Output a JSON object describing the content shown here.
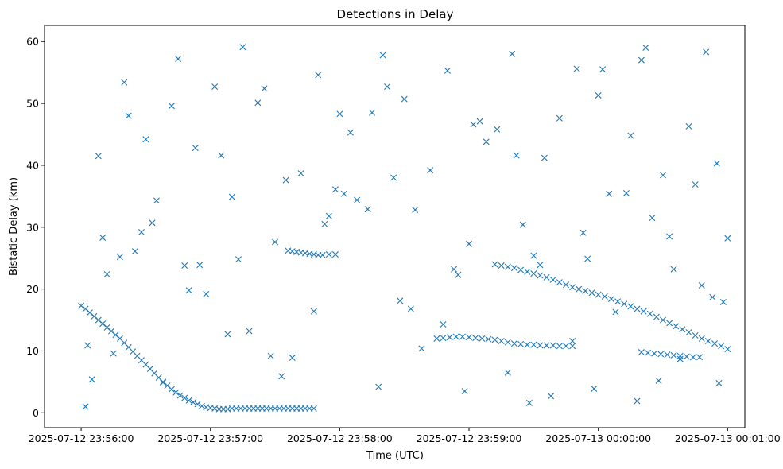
{
  "chart_data": {
    "type": "scatter",
    "title": "Detections in Delay",
    "xlabel": "Time (UTC)",
    "ylabel": "Bistatic Delay (km)",
    "x_is_datetime": true,
    "xlim": [
      "2025-07-12 23:55:43",
      "2025-07-13 00:01:08"
    ],
    "ylim": [
      -2.4,
      62.6
    ],
    "xticks": [
      "2025-07-12 23:56:00",
      "2025-07-12 23:57:00",
      "2025-07-12 23:58:00",
      "2025-07-12 23:59:00",
      "2025-07-13 00:00:00",
      "2025-07-13 00:01:00"
    ],
    "xtick_labels": [
      "2025-07-12 23:56:00",
      "2025-07-12 23:57:00",
      "2025-07-12 23:58:00",
      "2025-07-12 23:59:00",
      "2025-07-13 00:00:00",
      "2025-07-13 00:01:00"
    ],
    "yticks": [
      0,
      10,
      20,
      30,
      40,
      50,
      60
    ],
    "ytick_labels": [
      "0",
      "10",
      "20",
      "30",
      "40",
      "50",
      "60"
    ],
    "grid": false,
    "marker": "x",
    "color": "#1f77b4",
    "series": [
      {
        "x": [
          "2025-07-12 23:56:00",
          "2025-07-12 23:56:02",
          "2025-07-12 23:56:04",
          "2025-07-12 23:56:06",
          "2025-07-12 23:56:08",
          "2025-07-12 23:56:10",
          "2025-07-12 23:56:12",
          "2025-07-12 23:56:14",
          "2025-07-12 23:56:16",
          "2025-07-12 23:56:18",
          "2025-07-12 23:56:20",
          "2025-07-12 23:56:22",
          "2025-07-12 23:56:24",
          "2025-07-12 23:56:26",
          "2025-07-12 23:56:28",
          "2025-07-12 23:56:30",
          "2025-07-12 23:56:32",
          "2025-07-12 23:56:34",
          "2025-07-12 23:56:36",
          "2025-07-12 23:56:38",
          "2025-07-12 23:56:40",
          "2025-07-12 23:56:42",
          "2025-07-12 23:56:44",
          "2025-07-12 23:56:46",
          "2025-07-12 23:56:48",
          "2025-07-12 23:56:50",
          "2025-07-12 23:56:52",
          "2025-07-12 23:56:54",
          "2025-07-12 23:56:56",
          "2025-07-12 23:56:58",
          "2025-07-12 23:57:00",
          "2025-07-12 23:57:02",
          "2025-07-12 23:57:04",
          "2025-07-12 23:57:06",
          "2025-07-12 23:57:08",
          "2025-07-12 23:57:10",
          "2025-07-12 23:57:12",
          "2025-07-12 23:57:14",
          "2025-07-12 23:57:16",
          "2025-07-12 23:57:18",
          "2025-07-12 23:57:20",
          "2025-07-12 23:57:22",
          "2025-07-12 23:57:24",
          "2025-07-12 23:57:26",
          "2025-07-12 23:57:28",
          "2025-07-12 23:57:30",
          "2025-07-12 23:57:32",
          "2025-07-12 23:57:34",
          "2025-07-12 23:57:36",
          "2025-07-12 23:57:38",
          "2025-07-12 23:57:40",
          "2025-07-12 23:57:42",
          "2025-07-12 23:57:44",
          "2025-07-12 23:57:46",
          "2025-07-12 23:57:48",
          "2025-07-12 23:57:36",
          "2025-07-12 23:57:38",
          "2025-07-12 23:57:40",
          "2025-07-12 23:57:42",
          "2025-07-12 23:57:44",
          "2025-07-12 23:57:46",
          "2025-07-12 23:57:48",
          "2025-07-12 23:57:50",
          "2025-07-12 23:57:52",
          "2025-07-12 23:57:55",
          "2025-07-12 23:57:58",
          "2025-07-12 23:58:45",
          "2025-07-12 23:58:48",
          "2025-07-12 23:58:51",
          "2025-07-12 23:58:54",
          "2025-07-12 23:58:57",
          "2025-07-12 23:59:00",
          "2025-07-12 23:59:03",
          "2025-07-12 23:59:06",
          "2025-07-12 23:59:09",
          "2025-07-12 23:59:12",
          "2025-07-12 23:59:15",
          "2025-07-12 23:59:18",
          "2025-07-12 23:59:21",
          "2025-07-12 23:59:24",
          "2025-07-12 23:59:27",
          "2025-07-12 23:59:30",
          "2025-07-12 23:59:33",
          "2025-07-12 23:59:36",
          "2025-07-12 23:59:39",
          "2025-07-12 23:59:42",
          "2025-07-12 23:59:45",
          "2025-07-12 23:59:48",
          "2025-07-12 23:59:12",
          "2025-07-12 23:59:15",
          "2025-07-12 23:59:18",
          "2025-07-12 23:59:21",
          "2025-07-12 23:59:24",
          "2025-07-12 23:59:27",
          "2025-07-12 23:59:30",
          "2025-07-12 23:59:33",
          "2025-07-12 23:59:36",
          "2025-07-12 23:59:39",
          "2025-07-12 23:59:42",
          "2025-07-12 23:59:45",
          "2025-07-12 23:59:48",
          "2025-07-12 23:59:51",
          "2025-07-12 23:59:54",
          "2025-07-12 23:59:57",
          "2025-07-13 00:00:00",
          "2025-07-13 00:00:03",
          "2025-07-13 00:00:06",
          "2025-07-13 00:00:09",
          "2025-07-13 00:00:12",
          "2025-07-13 00:00:15",
          "2025-07-13 00:00:18",
          "2025-07-13 00:00:21",
          "2025-07-13 00:00:24",
          "2025-07-13 00:00:27",
          "2025-07-13 00:00:30",
          "2025-07-13 00:00:33",
          "2025-07-13 00:00:36",
          "2025-07-13 00:00:39",
          "2025-07-13 00:00:42",
          "2025-07-13 00:00:45",
          "2025-07-13 00:00:48",
          "2025-07-13 00:00:51",
          "2025-07-13 00:00:54",
          "2025-07-13 00:00:57",
          "2025-07-13 00:01:00",
          "2025-07-13 00:00:20",
          "2025-07-13 00:00:23",
          "2025-07-13 00:00:26",
          "2025-07-13 00:00:29",
          "2025-07-13 00:00:32",
          "2025-07-13 00:00:35",
          "2025-07-13 00:00:38",
          "2025-07-13 00:00:41",
          "2025-07-13 00:00:44",
          "2025-07-13 00:00:47",
          "2025-07-12 23:56:20",
          "2025-07-12 23:56:45",
          "2025-07-12 23:57:15",
          "2025-07-12 23:57:50",
          "2025-07-12 23:58:20",
          "2025-07-12 23:58:50",
          "2025-07-12 23:59:20",
          "2025-07-12 23:59:50",
          "2025-07-13 00:00:20",
          "2025-07-13 00:00:50",
          "2025-07-12 23:56:05",
          "2025-07-12 23:56:15",
          "2025-07-12 23:56:25",
          "2025-07-12 23:56:35",
          "2025-07-12 23:56:55",
          "2025-07-12 23:57:05",
          "2025-07-12 23:57:25",
          "2025-07-12 23:57:35",
          "2025-07-12 23:57:55",
          "2025-07-12 23:58:05",
          "2025-07-12 23:58:15",
          "2025-07-12 23:58:25",
          "2025-07-12 23:58:35",
          "2025-07-12 23:58:55",
          "2025-07-12 23:59:05",
          "2025-07-12 23:59:25",
          "2025-07-12 23:59:35",
          "2025-07-12 23:59:55",
          "2025-07-13 00:00:05",
          "2025-07-13 00:00:15",
          "2025-07-13 00:00:25",
          "2025-07-13 00:00:35",
          "2025-07-13 00:00:45",
          "2025-07-13 00:00:55",
          "2025-07-12 23:56:10",
          "2025-07-12 23:56:30",
          "2025-07-12 23:56:50",
          "2025-07-12 23:57:10",
          "2025-07-12 23:57:30",
          "2025-07-12 23:58:00",
          "2025-07-12 23:58:30",
          "2025-07-12 23:59:00",
          "2025-07-12 23:59:30",
          "2025-07-13 00:00:00",
          "2025-07-13 00:00:30",
          "2025-07-13 00:00:58",
          "2025-07-12 23:56:03",
          "2025-07-12 23:56:18",
          "2025-07-12 23:56:38",
          "2025-07-12 23:56:58",
          "2025-07-12 23:57:18",
          "2025-07-12 23:57:38",
          "2025-07-12 23:57:58",
          "2025-07-12 23:58:18",
          "2025-07-12 23:58:38",
          "2025-07-12 23:58:58",
          "2025-07-12 23:59:18",
          "2025-07-12 23:59:38",
          "2025-07-12 23:59:58",
          "2025-07-13 00:00:18",
          "2025-07-13 00:00:38",
          "2025-07-13 00:00:56",
          "2025-07-12 23:56:08",
          "2025-07-12 23:56:28",
          "2025-07-12 23:56:48",
          "2025-07-12 23:57:08",
          "2025-07-12 23:57:28",
          "2025-07-12 23:57:48",
          "2025-07-12 23:58:08",
          "2025-07-12 23:58:28",
          "2025-07-12 23:58:48",
          "2025-07-12 23:59:08",
          "2025-07-12 23:59:28",
          "2025-07-12 23:59:48",
          "2025-07-13 00:00:08",
          "2025-07-13 00:00:28",
          "2025-07-13 00:00:48",
          "2025-07-12 23:56:12",
          "2025-07-12 23:56:33",
          "2025-07-12 23:56:53",
          "2025-07-12 23:57:13",
          "2025-07-12 23:57:33",
          "2025-07-12 23:57:53",
          "2025-07-12 23:58:13",
          "2025-07-12 23:58:33",
          "2025-07-12 23:58:53",
          "2025-07-12 23:59:13",
          "2025-07-12 23:59:33",
          "2025-07-12 23:59:53",
          "2025-07-13 00:00:13",
          "2025-07-13 00:00:33",
          "2025-07-13 00:00:53",
          "2025-07-12 23:56:02",
          "2025-07-12 23:56:22",
          "2025-07-12 23:56:42",
          "2025-07-12 23:57:02",
          "2025-07-12 23:57:22",
          "2025-07-12 23:57:42",
          "2025-07-12 23:58:02",
          "2025-07-12 23:58:22",
          "2025-07-12 23:58:42",
          "2025-07-12 23:59:02",
          "2025-07-12 23:59:22",
          "2025-07-12 23:59:42",
          "2025-07-13 00:00:02",
          "2025-07-13 00:00:22",
          "2025-07-13 00:00:42",
          "2025-07-13 00:01:00"
        ],
        "y": [
          17.3,
          16.8,
          16.2,
          15.6,
          15.0,
          14.4,
          13.8,
          13.2,
          12.6,
          12.0,
          11.3,
          10.6,
          9.9,
          9.2,
          8.5,
          7.8,
          7.1,
          6.4,
          5.7,
          5.0,
          4.4,
          3.8,
          3.3,
          2.8,
          2.4,
          2.0,
          1.7,
          1.4,
          1.1,
          0.9,
          0.8,
          0.7,
          0.6,
          0.6,
          0.6,
          0.7,
          0.7,
          0.7,
          0.7,
          0.7,
          0.7,
          0.7,
          0.7,
          0.7,
          0.7,
          0.7,
          0.7,
          0.7,
          0.7,
          0.7,
          0.7,
          0.7,
          0.7,
          0.7,
          0.7,
          26.2,
          26.1,
          26.0,
          25.9,
          25.8,
          25.7,
          25.6,
          25.5,
          25.5,
          25.6,
          25.6,
          12.0,
          12.1,
          12.2,
          12.3,
          12.3,
          12.2,
          12.1,
          12.0,
          11.9,
          11.8,
          11.6,
          11.4,
          11.2,
          11.1,
          11.0,
          11.0,
          10.9,
          10.9,
          10.9,
          10.8,
          10.8,
          10.8,
          24.0,
          23.8,
          23.6,
          23.4,
          23.1,
          22.8,
          22.5,
          22.2,
          21.9,
          21.5,
          21.1,
          20.7,
          20.3,
          20.0,
          19.7,
          19.4,
          19.1,
          18.8,
          18.4,
          18.0,
          17.6,
          17.2,
          16.8,
          16.4,
          16.0,
          15.5,
          15.0,
          14.5,
          14.0,
          13.5,
          13.0,
          12.5,
          12.0,
          11.6,
          11.2,
          10.8,
          10.3,
          9.8,
          9.7,
          9.6,
          9.5,
          9.4,
          9.3,
          9.2,
          9.1,
          9.0,
          9.0,
          53.4,
          57.2,
          59.1,
          54.6,
          57.8,
          55.3,
          58.0,
          55.6,
          57.0,
          58.3,
          5.4,
          9.6,
          26.1,
          34.3,
          23.9,
          41.6,
          52.4,
          37.6,
          31.8,
          45.3,
          48.5,
          38.0,
          32.8,
          22.3,
          47.1,
          30.4,
          41.2,
          24.9,
          35.4,
          44.8,
          31.5,
          23.2,
          36.9,
          40.3,
          28.3,
          44.2,
          19.8,
          34.9,
          27.6,
          48.3,
          50.7,
          27.3,
          25.4,
          51.3,
          38.4,
          17.9,
          10.9,
          25.2,
          4.9,
          19.2,
          13.2,
          8.9,
          36.1,
          4.2,
          10.4,
          3.5,
          6.5,
          2.7,
          3.9,
          1.9,
          8.7,
          4.8,
          41.5,
          29.2,
          23.8,
          12.7,
          9.2,
          16.4,
          34.4,
          18.1,
          14.3,
          43.8,
          1.6,
          11.6,
          16.3,
          5.2,
          20.6,
          22.4,
          30.7,
          42.8,
          24.8,
          5.9,
          30.5,
          32.9,
          16.8,
          23.2,
          45.8,
          23.9,
          29.1,
          35.5,
          28.5,
          18.7,
          1.0,
          48.0,
          49.6,
          52.7,
          50.1,
          38.7,
          35.4,
          52.7,
          39.2,
          46.6,
          41.6,
          47.6,
          55.5,
          59.0,
          46.3,
          28.2
        ]
      }
    ]
  }
}
